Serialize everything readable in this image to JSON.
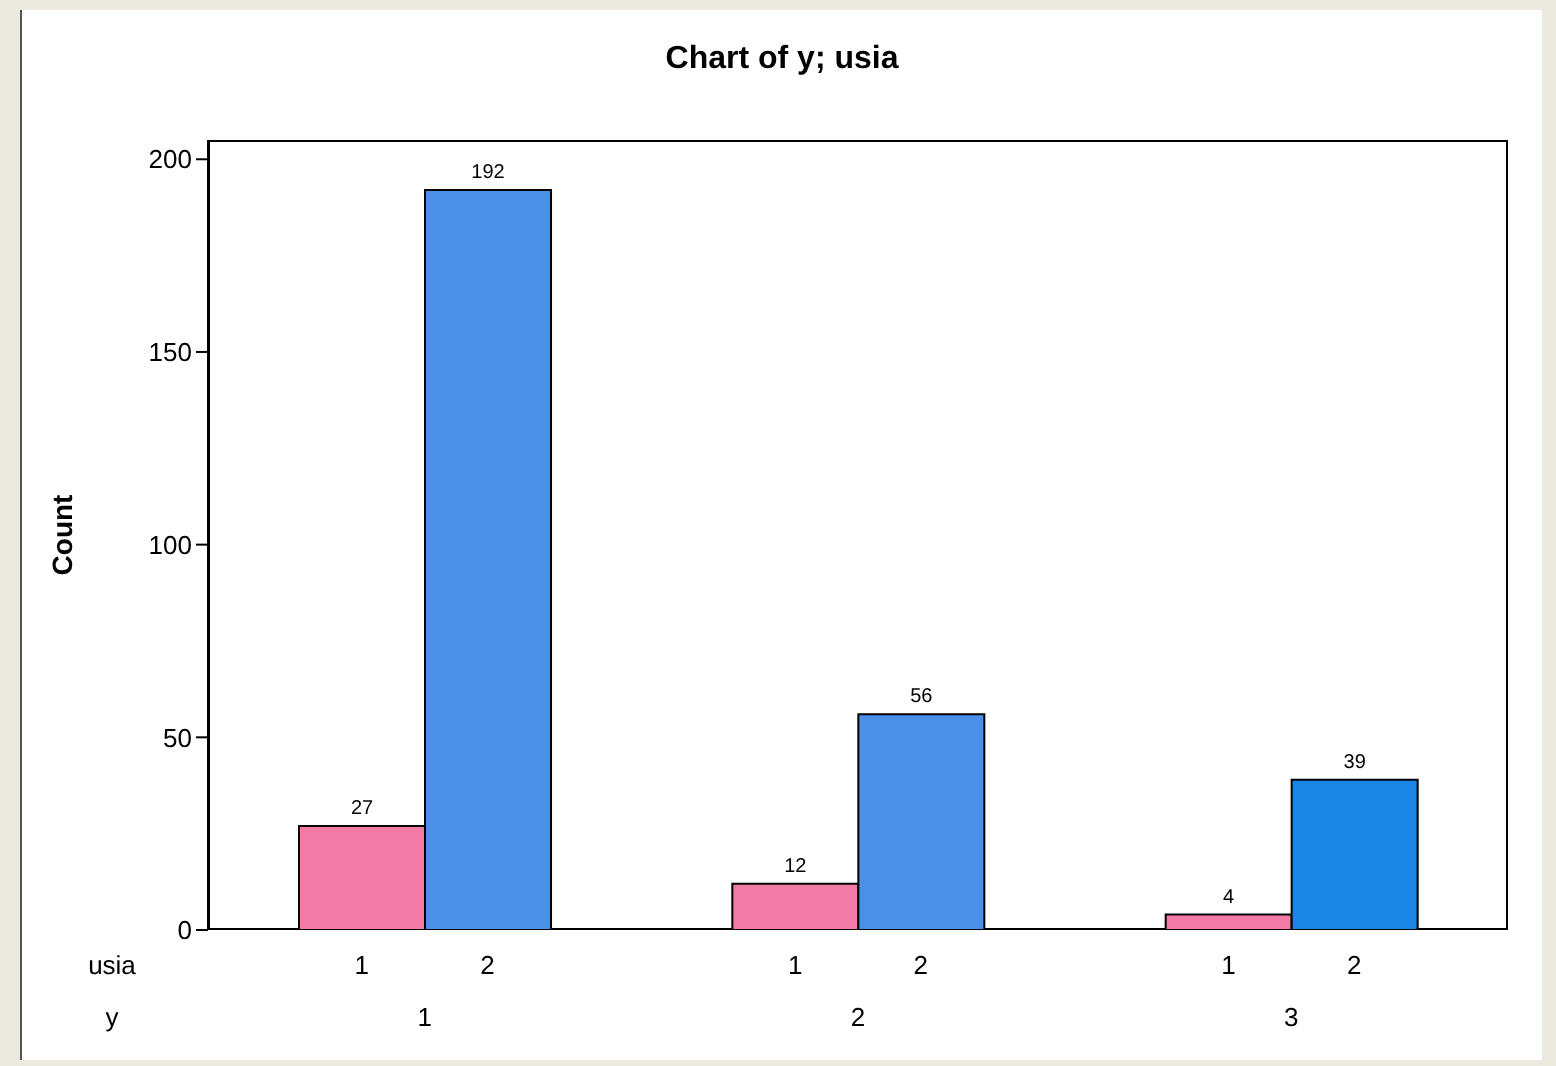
{
  "chart_data": {
    "type": "bar",
    "title": "Chart of y; usia",
    "ylabel": "Count",
    "xlabel": "y",
    "legend_title": "usia",
    "categories": [
      "1",
      "2",
      "3"
    ],
    "series": [
      {
        "name": "1",
        "color": "#f27ba6",
        "values": [
          27,
          12,
          4
        ]
      },
      {
        "name": "2",
        "color": "#4a90e8",
        "colors": [
          "#4a90e8",
          "#4a90e8",
          "#1a87e6"
        ],
        "values": [
          192,
          56,
          39
        ]
      }
    ],
    "ylim": [
      0,
      205
    ],
    "yticks": [
      0,
      50,
      100,
      150,
      200
    ],
    "data_labels": true
  }
}
